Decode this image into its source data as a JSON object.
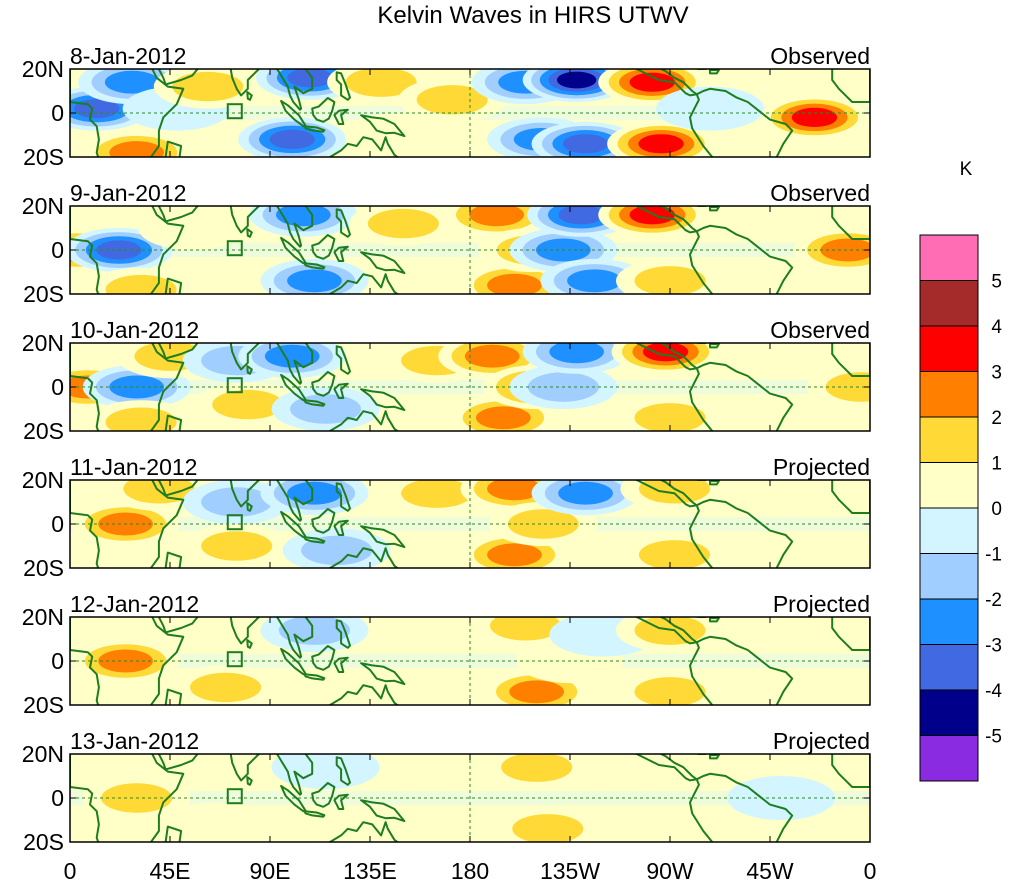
{
  "chart_data": {
    "type": "heatmap",
    "title": "Kelvin Waves in HIRS UTWV",
    "units": "K",
    "x_ticks": [
      "0",
      "45E",
      "90E",
      "135E",
      "180",
      "135W",
      "90W",
      "45W",
      "0"
    ],
    "x_tick_values": [
      0,
      45,
      90,
      135,
      180,
      225,
      270,
      315,
      360
    ],
    "y_ticks": [
      "20N",
      "0",
      "20S"
    ],
    "y_tick_values": [
      20,
      0,
      -20
    ],
    "xlim": [
      0,
      360
    ],
    "ylim": [
      -20,
      20
    ],
    "reference_lines": {
      "equator_lat": 0,
      "dateline_lon": 180
    },
    "colorbar": {
      "labels": [
        "5",
        "4",
        "3",
        "2",
        "1",
        "0",
        "-1",
        "-2",
        "-3",
        "-4",
        "-5"
      ],
      "levels": [
        5,
        4,
        3,
        2,
        1,
        0,
        -1,
        -2,
        -3,
        -4,
        -5
      ],
      "colors": [
        "#ff6eb4",
        "#a52a2a",
        "#ff0000",
        "#ff7f00",
        "#ffd935",
        "#ffffc8",
        "#d2f5ff",
        "#a0ceff",
        "#1e90ff",
        "#4169e1",
        "#00008b",
        "#8a2be2"
      ]
    },
    "panels": [
      {
        "date": "8-Jan-2012",
        "status": "Observed",
        "anomalies": [
          {
            "lon": 12,
            "lat": 2,
            "value": -4
          },
          {
            "lon": 28,
            "lat": 14,
            "value": -3
          },
          {
            "lon": 30,
            "lat": -18,
            "value": 3
          },
          {
            "lon": 48,
            "lat": 2,
            "value": -1
          },
          {
            "lon": 62,
            "lat": 12,
            "value": 2
          },
          {
            "lon": 100,
            "lat": -12,
            "value": -4
          },
          {
            "lon": 108,
            "lat": 16,
            "value": -4
          },
          {
            "lon": 140,
            "lat": 14,
            "value": 2
          },
          {
            "lon": 148,
            "lat": -10,
            "value": 1
          },
          {
            "lon": 172,
            "lat": 6,
            "value": 2
          },
          {
            "lon": 205,
            "lat": 14,
            "value": -3
          },
          {
            "lon": 212,
            "lat": -12,
            "value": -3
          },
          {
            "lon": 228,
            "lat": 15,
            "value": -5
          },
          {
            "lon": 232,
            "lat": -14,
            "value": -4
          },
          {
            "lon": 262,
            "lat": 14,
            "value": 4
          },
          {
            "lon": 266,
            "lat": -14,
            "value": 4
          },
          {
            "lon": 288,
            "lat": 2,
            "value": -1
          },
          {
            "lon": 335,
            "lat": -2,
            "value": 4
          }
        ]
      },
      {
        "date": "9-Jan-2012",
        "status": "Observed",
        "anomalies": [
          {
            "lon": 3,
            "lat": 0,
            "value": 3
          },
          {
            "lon": 22,
            "lat": 0,
            "value": -4
          },
          {
            "lon": 32,
            "lat": -18,
            "value": 2
          },
          {
            "lon": 55,
            "lat": 10,
            "value": 1
          },
          {
            "lon": 105,
            "lat": 16,
            "value": -3
          },
          {
            "lon": 110,
            "lat": -14,
            "value": -3
          },
          {
            "lon": 150,
            "lat": 12,
            "value": 2
          },
          {
            "lon": 192,
            "lat": 16,
            "value": 3
          },
          {
            "lon": 200,
            "lat": -16,
            "value": 3
          },
          {
            "lon": 208,
            "lat": 0,
            "value": 2
          },
          {
            "lon": 222,
            "lat": 0,
            "value": -3
          },
          {
            "lon": 230,
            "lat": 16,
            "value": -4
          },
          {
            "lon": 236,
            "lat": -14,
            "value": -3
          },
          {
            "lon": 262,
            "lat": 16,
            "value": 4
          },
          {
            "lon": 270,
            "lat": -14,
            "value": 2
          },
          {
            "lon": 350,
            "lat": 0,
            "value": 3
          }
        ]
      },
      {
        "date": "10-Jan-2012",
        "status": "Observed",
        "anomalies": [
          {
            "lon": 8,
            "lat": 0,
            "value": 3
          },
          {
            "lon": 30,
            "lat": 0,
            "value": -3
          },
          {
            "lon": 45,
            "lat": 14,
            "value": 2
          },
          {
            "lon": 32,
            "lat": -16,
            "value": 2
          },
          {
            "lon": 75,
            "lat": 12,
            "value": -2
          },
          {
            "lon": 80,
            "lat": -8,
            "value": 2
          },
          {
            "lon": 100,
            "lat": 14,
            "value": -3
          },
          {
            "lon": 115,
            "lat": -10,
            "value": -2
          },
          {
            "lon": 165,
            "lat": 12,
            "value": 2
          },
          {
            "lon": 190,
            "lat": 14,
            "value": 3
          },
          {
            "lon": 195,
            "lat": -14,
            "value": 3
          },
          {
            "lon": 210,
            "lat": 0,
            "value": 3
          },
          {
            "lon": 222,
            "lat": 0,
            "value": -2
          },
          {
            "lon": 228,
            "lat": 16,
            "value": -3
          },
          {
            "lon": 268,
            "lat": 16,
            "value": 4
          },
          {
            "lon": 270,
            "lat": -14,
            "value": 2
          },
          {
            "lon": 356,
            "lat": 0,
            "value": 2
          }
        ]
      },
      {
        "date": "11-Jan-2012",
        "status": "Projected",
        "anomalies": [
          {
            "lon": 25,
            "lat": 0,
            "value": 3
          },
          {
            "lon": 40,
            "lat": 16,
            "value": 2
          },
          {
            "lon": 75,
            "lat": 10,
            "value": -2
          },
          {
            "lon": 75,
            "lat": -10,
            "value": 2
          },
          {
            "lon": 110,
            "lat": 14,
            "value": -3
          },
          {
            "lon": 120,
            "lat": -12,
            "value": -2
          },
          {
            "lon": 165,
            "lat": 14,
            "value": 2
          },
          {
            "lon": 200,
            "lat": 16,
            "value": 3
          },
          {
            "lon": 200,
            "lat": -14,
            "value": 3
          },
          {
            "lon": 213,
            "lat": 0,
            "value": 2
          },
          {
            "lon": 232,
            "lat": 14,
            "value": -3
          },
          {
            "lon": 272,
            "lat": 16,
            "value": 2
          },
          {
            "lon": 272,
            "lat": -14,
            "value": 2
          }
        ]
      },
      {
        "date": "12-Jan-2012",
        "status": "Projected",
        "anomalies": [
          {
            "lon": 25,
            "lat": 0,
            "value": 3
          },
          {
            "lon": 70,
            "lat": -12,
            "value": 2
          },
          {
            "lon": 110,
            "lat": 14,
            "value": -2
          },
          {
            "lon": 165,
            "lat": 14,
            "value": 1
          },
          {
            "lon": 205,
            "lat": 16,
            "value": 2
          },
          {
            "lon": 210,
            "lat": -14,
            "value": 3
          },
          {
            "lon": 225,
            "lat": 0,
            "value": 1
          },
          {
            "lon": 240,
            "lat": 12,
            "value": -1
          },
          {
            "lon": 270,
            "lat": 14,
            "value": 2
          },
          {
            "lon": 270,
            "lat": -14,
            "value": 2
          }
        ]
      },
      {
        "date": "13-Jan-2012",
        "status": "Projected",
        "anomalies": [
          {
            "lon": 30,
            "lat": 0,
            "value": 2
          },
          {
            "lon": 65,
            "lat": -12,
            "value": 1
          },
          {
            "lon": 115,
            "lat": 14,
            "value": -1
          },
          {
            "lon": 210,
            "lat": 14,
            "value": 2
          },
          {
            "lon": 215,
            "lat": -14,
            "value": 2
          },
          {
            "lon": 265,
            "lat": 14,
            "value": 1
          },
          {
            "lon": 268,
            "lat": -14,
            "value": 1
          },
          {
            "lon": 320,
            "lat": 0,
            "value": -1
          }
        ]
      }
    ]
  }
}
